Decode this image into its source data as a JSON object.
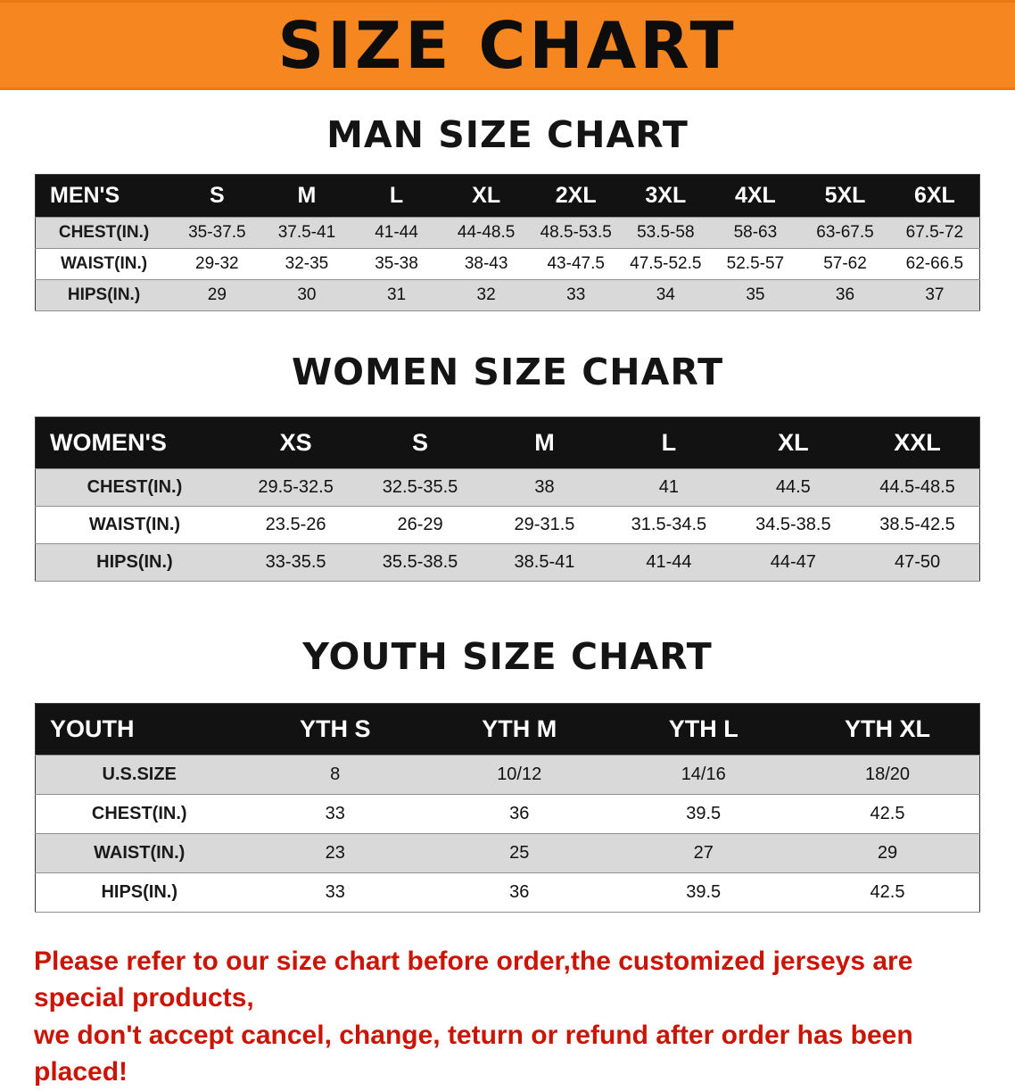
{
  "banner": {
    "title": "SIZE CHART",
    "bg_color": "#f6861f"
  },
  "sections": [
    {
      "heading": "MAN SIZE CHART",
      "table": {
        "header": [
          "MEN'S",
          "S",
          "M",
          "L",
          "XL",
          "2XL",
          "3XL",
          "4XL",
          "5XL",
          "6XL"
        ],
        "rows": [
          [
            "CHEST(IN.)",
            "35-37.5",
            "37.5-41",
            "41-44",
            "44-48.5",
            "48.5-53.5",
            "53.5-58",
            "58-63",
            "63-67.5",
            "67.5-72"
          ],
          [
            "WAIST(IN.)",
            "29-32",
            "32-35",
            "35-38",
            "38-43",
            "43-47.5",
            "47.5-52.5",
            "52.5-57",
            "57-62",
            "62-66.5"
          ],
          [
            "HIPS(IN.)",
            "29",
            "30",
            "31",
            "32",
            "33",
            "34",
            "35",
            "36",
            "37"
          ]
        ]
      }
    },
    {
      "heading": "WOMEN SIZE CHART",
      "table": {
        "header": [
          "WOMEN'S",
          "XS",
          "S",
          "M",
          "L",
          "XL",
          "XXL"
        ],
        "rows": [
          [
            "CHEST(IN.)",
            "29.5-32.5",
            "32.5-35.5",
            "38",
            "41",
            "44.5",
            "44.5-48.5"
          ],
          [
            "WAIST(IN.)",
            "23.5-26",
            "26-29",
            "29-31.5",
            "31.5-34.5",
            "34.5-38.5",
            "38.5-42.5"
          ],
          [
            "HIPS(IN.)",
            "33-35.5",
            "35.5-38.5",
            "38.5-41",
            "41-44",
            "44-47",
            "47-50"
          ]
        ]
      }
    },
    {
      "heading": "YOUTH SIZE CHART",
      "table": {
        "header": [
          "YOUTH",
          "YTH S",
          "YTH M",
          "YTH L",
          "YTH XL"
        ],
        "rows": [
          [
            "U.S.SIZE",
            "8",
            "10/12",
            "14/16",
            "18/20"
          ],
          [
            "CHEST(IN.)",
            "33",
            "36",
            "39.5",
            "42.5"
          ],
          [
            "WAIST(IN.)",
            "23",
            "25",
            "27",
            "29"
          ],
          [
            "HIPS(IN.)",
            "33",
            "36",
            "39.5",
            "42.5"
          ]
        ]
      }
    }
  ],
  "footer": {
    "line1": "Please refer to our size chart before order,the customized jerseys are special products,",
    "line2": "we don't accept cancel, change, teturn or refund after order has been placed!",
    "color": "#cc1405"
  }
}
